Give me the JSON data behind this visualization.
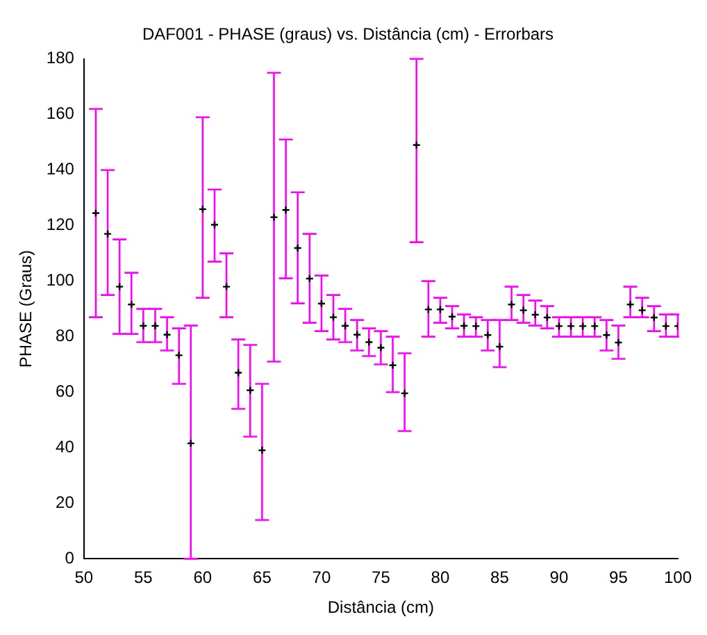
{
  "chart_data": {
    "type": "scatter",
    "title": "DAF001 - PHASE (graus) vs. Distância (cm) - Errorbars",
    "xlabel": "Distância (cm)",
    "ylabel": "PHASE (Graus)",
    "x": [
      51,
      52,
      53,
      54,
      55,
      56,
      57,
      58,
      59,
      60,
      61,
      62,
      63,
      64,
      65,
      66,
      67,
      68,
      69,
      70,
      71,
      72,
      73,
      74,
      75,
      76,
      77,
      78,
      79,
      80,
      81,
      82,
      83,
      84,
      85,
      86,
      87,
      88,
      89,
      90,
      91,
      92,
      93,
      94,
      95,
      96,
      97,
      98,
      99,
      100
    ],
    "series": [
      {
        "color": "#000000",
        "values": [
          124.5,
          117,
          98,
          91.6,
          83.9,
          83.9,
          80.7,
          73.3,
          41.6,
          125.9,
          120.3,
          98,
          67,
          60.7,
          39.1,
          123,
          125.6,
          111.9,
          100.9,
          91.9,
          87,
          83.9,
          80.7,
          78,
          76,
          69.7,
          59.6,
          149,
          89.8,
          89.8,
          87.2,
          83.9,
          83.8,
          80.6,
          76.4,
          91.6,
          89.5,
          87.9,
          86.9,
          83.8,
          83.8,
          83.8,
          83.8,
          80.6,
          77.9,
          91.6,
          89.5,
          86.9,
          83.8,
          83.8
        ],
        "errors": [
          [
            87,
            162
          ],
          [
            95,
            140
          ],
          [
            81,
            115
          ],
          [
            81,
            103
          ],
          [
            78,
            90
          ],
          [
            78,
            90
          ],
          [
            75,
            87
          ],
          [
            63,
            83
          ],
          [
            0,
            84
          ],
          [
            94,
            159
          ],
          [
            107,
            133
          ],
          [
            87,
            110
          ],
          [
            54,
            79
          ],
          [
            44,
            77
          ],
          [
            14,
            63
          ],
          [
            71,
            175
          ],
          [
            101,
            151
          ],
          [
            92,
            132
          ],
          [
            85,
            117
          ],
          [
            82,
            102
          ],
          [
            79,
            95
          ],
          [
            78,
            90
          ],
          [
            75,
            86
          ],
          [
            73,
            83
          ],
          [
            70,
            82
          ],
          [
            60,
            80
          ],
          [
            46,
            74
          ],
          [
            114,
            180
          ],
          [
            80,
            100
          ],
          [
            85,
            94
          ],
          [
            83,
            91
          ],
          [
            80,
            88
          ],
          [
            80,
            87
          ],
          [
            75,
            86
          ],
          [
            69,
            86
          ],
          [
            86,
            98
          ],
          [
            85,
            95
          ],
          [
            84,
            93
          ],
          [
            83,
            91
          ],
          [
            80,
            87
          ],
          [
            80,
            87
          ],
          [
            80,
            87
          ],
          [
            80,
            87
          ],
          [
            75,
            86
          ],
          [
            72,
            84
          ],
          [
            87,
            98
          ],
          [
            87,
            94
          ],
          [
            82,
            91
          ],
          [
            80,
            88
          ],
          [
            80,
            88
          ]
        ]
      }
    ],
    "xlim": [
      50,
      100
    ],
    "xticks": [
      50,
      55,
      60,
      65,
      70,
      75,
      80,
      85,
      90,
      95,
      100
    ],
    "ylim": [
      0,
      180
    ],
    "yticks": [
      0,
      20,
      40,
      60,
      80,
      100,
      120,
      140,
      160,
      180
    ],
    "grid": false,
    "legend": false,
    "marker": "cross"
  }
}
